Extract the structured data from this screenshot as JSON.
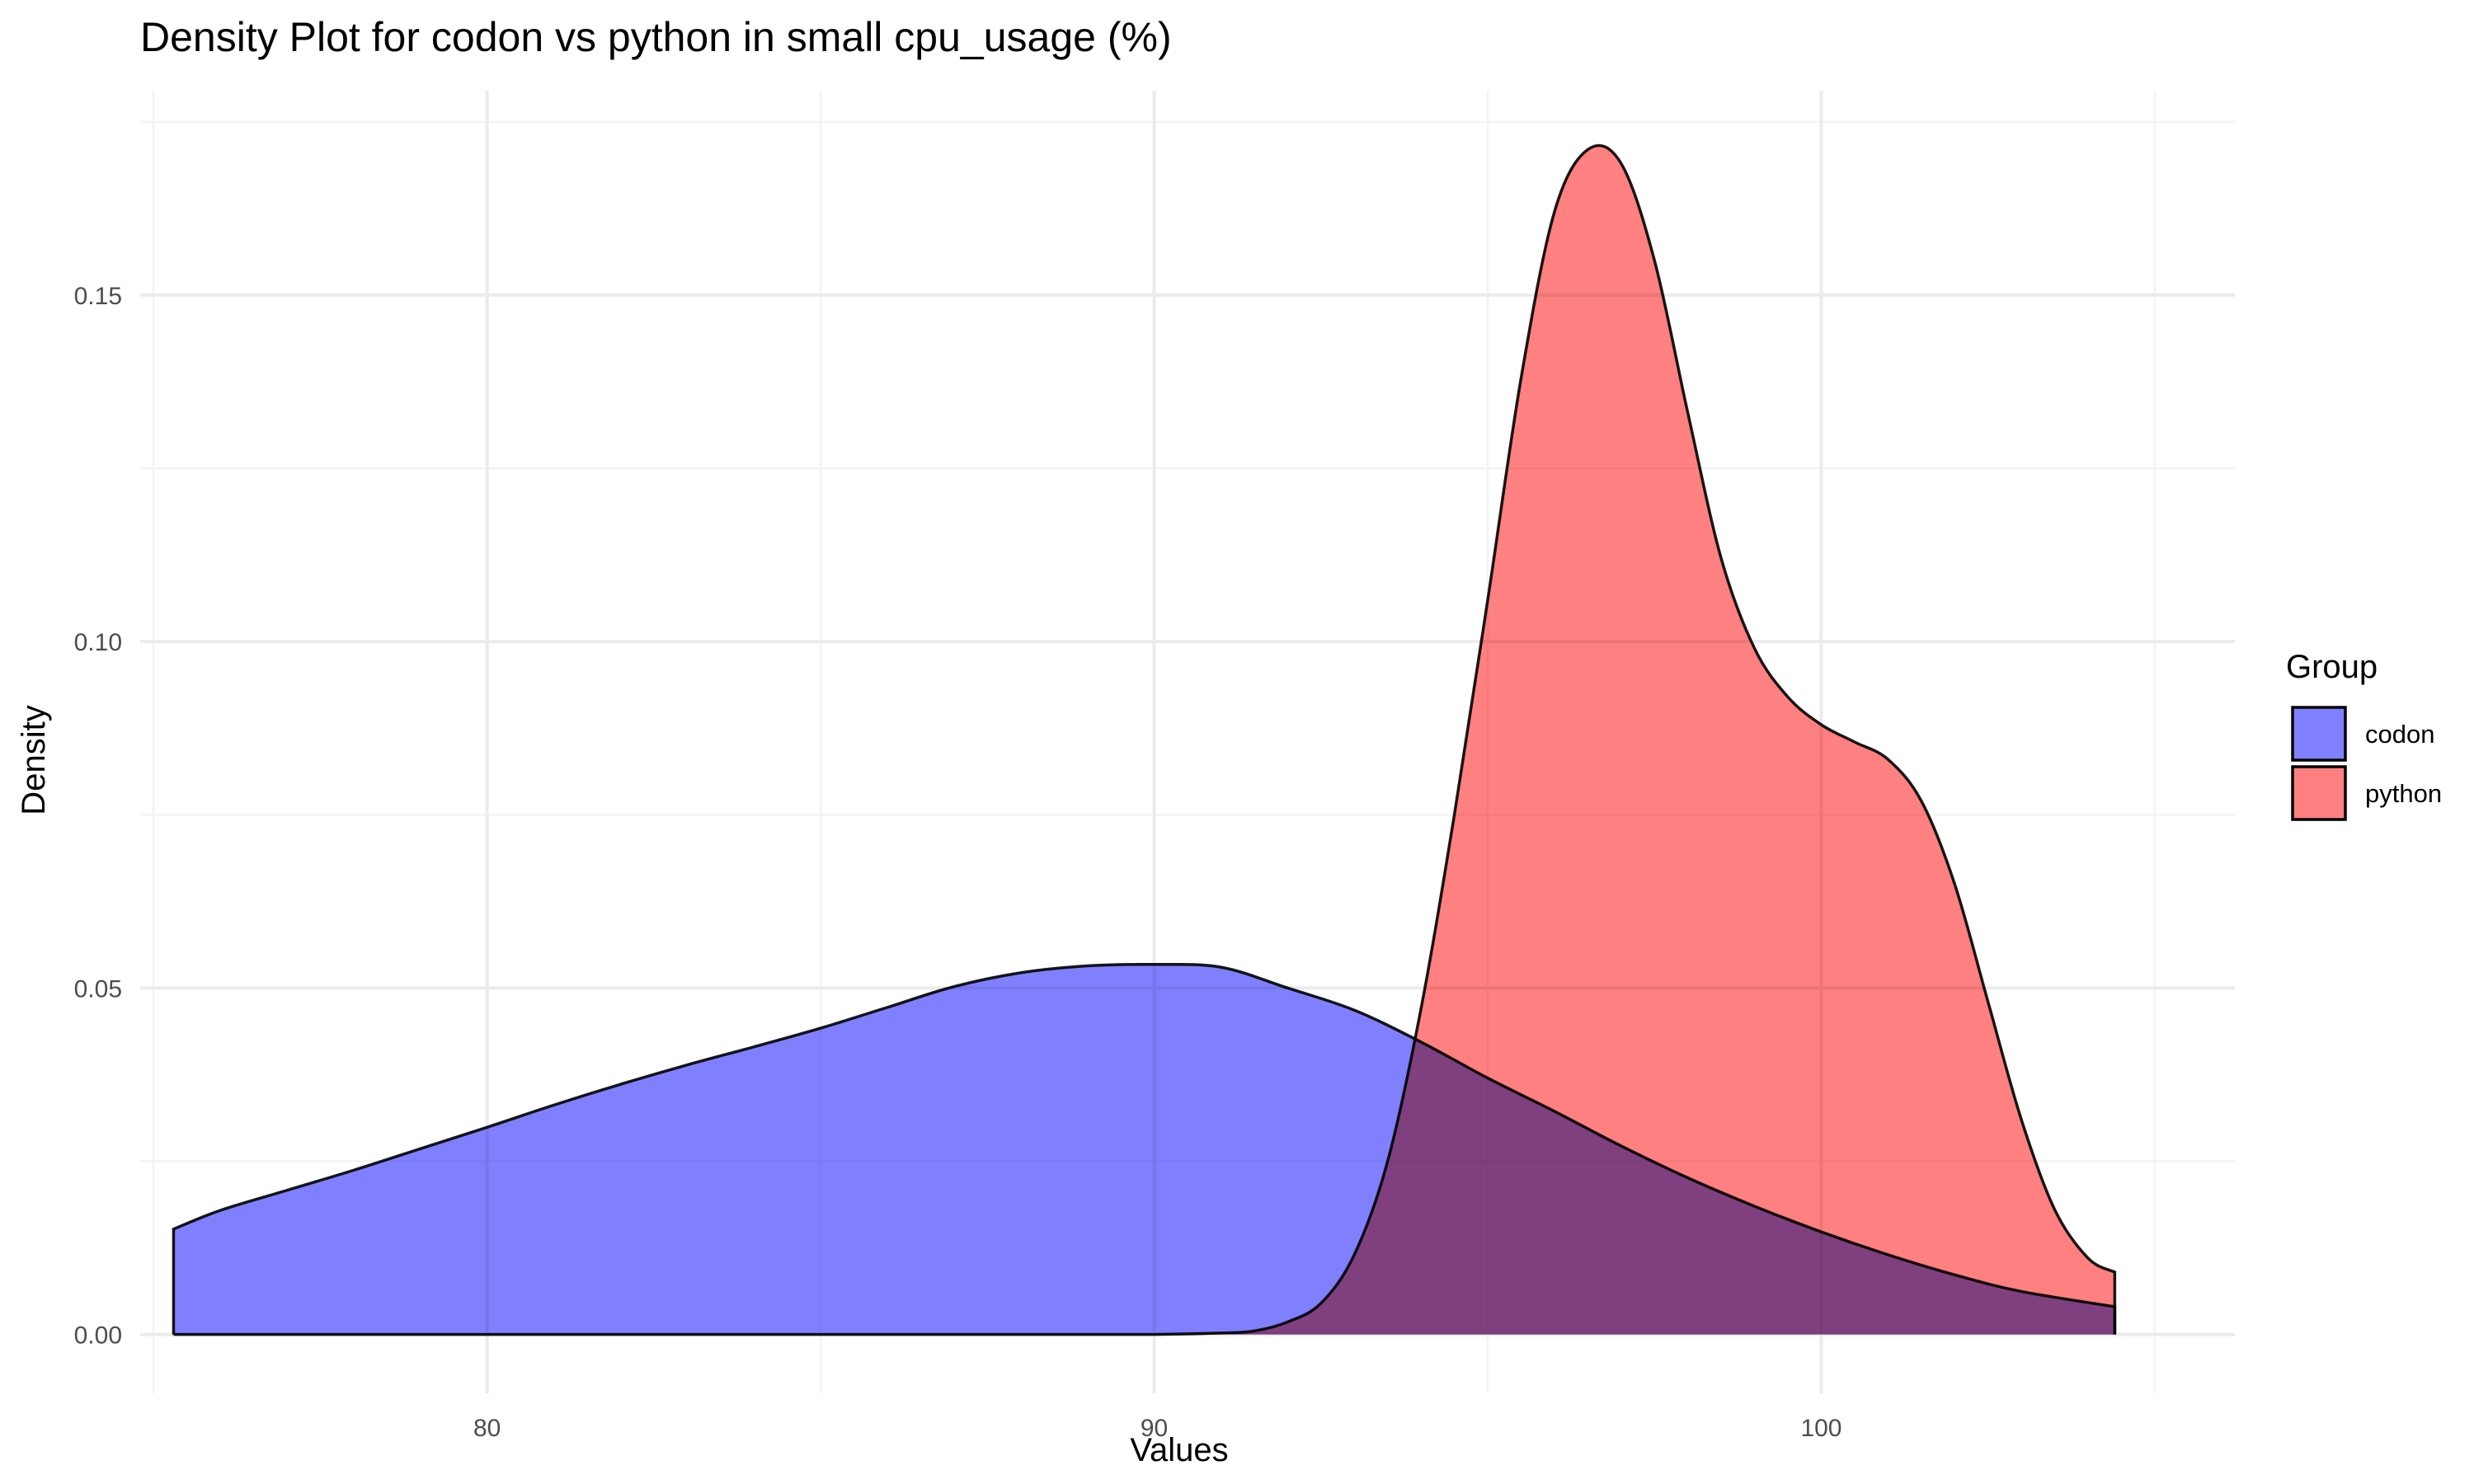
{
  "chart_data": {
    "type": "area",
    "title": "Density Plot for codon vs python in small cpu_usage (%)",
    "xlabel": "Values",
    "ylabel": "Density",
    "xlim": [
      74.8,
      106.2
    ],
    "ylim": [
      -0.0085,
      0.1795
    ],
    "x_ticks": [
      80,
      90,
      100
    ],
    "x_tick_labels": [
      "80",
      "90",
      "100"
    ],
    "y_ticks": [
      0.0,
      0.05,
      0.1,
      0.15
    ],
    "y_tick_labels": [
      "0.00",
      "0.05",
      "0.10",
      "0.15"
    ],
    "grid": true,
    "legend": {
      "title": "Group",
      "position": "right"
    },
    "series": [
      {
        "name": "codon",
        "color": "#8080ff",
        "x": [
          75.3,
          76,
          77,
          78,
          79,
          80,
          81,
          82,
          83,
          84,
          85,
          86,
          87,
          88,
          89,
          90,
          91,
          92,
          93,
          94,
          95,
          96,
          97,
          98,
          99,
          100,
          101,
          102,
          103,
          104.4
        ],
        "y": [
          0.0152,
          0.0179,
          0.0208,
          0.0237,
          0.0268,
          0.0299,
          0.0331,
          0.0361,
          0.0389,
          0.0415,
          0.0442,
          0.0472,
          0.0502,
          0.0522,
          0.0532,
          0.0534,
          0.053,
          0.05,
          0.0468,
          0.0422,
          0.037,
          0.0322,
          0.0272,
          0.0226,
          0.0185,
          0.0148,
          0.0115,
          0.0086,
          0.0062,
          0.004
        ]
      },
      {
        "name": "python",
        "color": "#ff8080",
        "x": [
          75.3,
          80,
          85,
          88,
          90,
          91,
          91.5,
          92,
          92.5,
          93,
          93.5,
          94,
          94.5,
          95,
          95.5,
          96,
          96.5,
          97,
          97.5,
          98,
          98.5,
          99,
          99.5,
          100,
          100.5,
          101,
          101.5,
          102,
          102.5,
          103,
          103.5,
          104,
          104.4
        ],
        "y": [
          0,
          0,
          0,
          0,
          0,
          0.0002,
          0.0005,
          0.0018,
          0.0045,
          0.0115,
          0.025,
          0.047,
          0.075,
          0.106,
          0.138,
          0.162,
          0.171,
          0.169,
          0.155,
          0.133,
          0.112,
          0.099,
          0.092,
          0.088,
          0.0855,
          0.083,
          0.077,
          0.065,
          0.048,
          0.031,
          0.018,
          0.011,
          0.009
        ]
      }
    ]
  }
}
